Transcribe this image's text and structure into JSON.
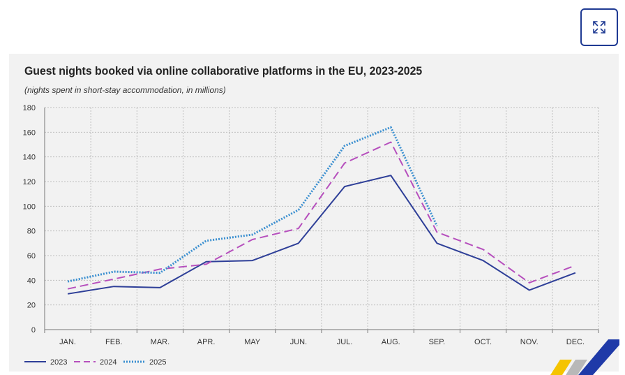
{
  "chart_data": {
    "type": "line",
    "title": "Guest nights booked via online collaborative platforms in the EU, 2023-2025",
    "subtitle": "(nights spent in short-stay accommodation, in millions)",
    "categories": [
      "JAN.",
      "FEB.",
      "MAR.",
      "APR.",
      "MAY",
      "JUN.",
      "JUL.",
      "AUG.",
      "SEP.",
      "OCT.",
      "NOV.",
      "DEC."
    ],
    "ylim": [
      0,
      180
    ],
    "yticks": [
      0,
      20,
      40,
      60,
      80,
      100,
      120,
      140,
      160,
      180
    ],
    "grid": true,
    "legend_position": "bottom-left",
    "series": [
      {
        "name": "2023",
        "color": "#2e3f98",
        "style": "solid",
        "values": [
          29,
          35,
          34,
          55,
          56,
          70,
          116,
          125,
          70,
          56,
          32,
          46
        ]
      },
      {
        "name": "2024",
        "color": "#b64fbd",
        "style": "dashed",
        "values": [
          33,
          41,
          49,
          53,
          73,
          82,
          135,
          152,
          79,
          65,
          38,
          52
        ]
      },
      {
        "name": "2025",
        "color": "#3a8fd0",
        "style": "dotted",
        "values": [
          39,
          47,
          46,
          72,
          77,
          97,
          149,
          164,
          84,
          null,
          null,
          null
        ]
      }
    ]
  },
  "ui": {
    "expand_icon": "expand-icon",
    "logo": "eurostat-logo-corner",
    "logo_colors": [
      "#f5c400",
      "#b8b8b8",
      "#1f3aa8"
    ]
  }
}
